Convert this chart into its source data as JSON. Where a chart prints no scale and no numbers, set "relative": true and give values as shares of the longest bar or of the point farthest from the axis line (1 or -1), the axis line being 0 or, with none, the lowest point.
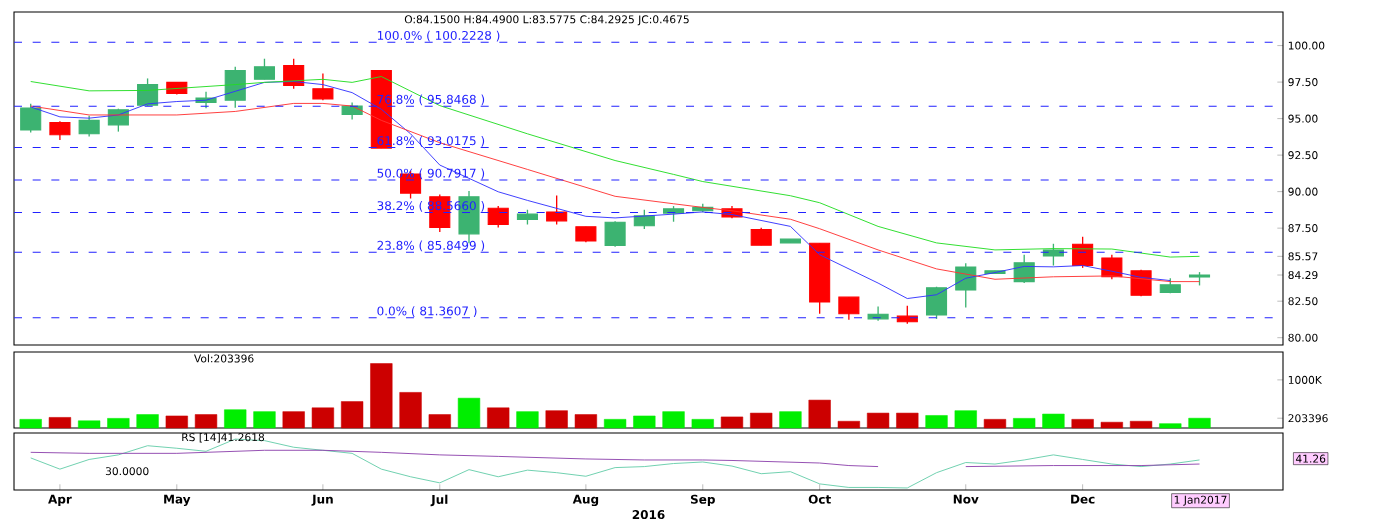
{
  "chart_data": [
    {
      "type": "candlestick",
      "x": [
        "2016-03-28",
        "2016-04-04",
        "2016-04-11",
        "2016-04-18",
        "2016-04-25",
        "2016-05-02",
        "2016-05-09",
        "2016-05-16",
        "2016-05-23",
        "2016-05-30",
        "2016-06-06",
        "2016-06-13",
        "2016-06-20",
        "2016-06-27",
        "2016-07-04",
        "2016-07-11",
        "2016-07-18",
        "2016-07-25",
        "2016-08-01",
        "2016-08-08",
        "2016-08-15",
        "2016-08-22",
        "2016-08-29",
        "2016-09-05",
        "2016-09-12",
        "2016-09-19",
        "2016-09-26",
        "2016-10-03",
        "2016-10-10",
        "2016-10-17",
        "2016-10-24",
        "2016-10-31",
        "2016-11-07",
        "2016-11-14",
        "2016-11-21",
        "2016-11-28",
        "2016-12-05",
        "2016-12-12",
        "2016-12-19",
        "2016-12-26",
        "2017-01-02"
      ],
      "ohlc": [
        [
          94.22,
          96.01,
          94.05,
          95.72
        ],
        [
          94.73,
          94.82,
          93.54,
          93.9
        ],
        [
          93.96,
          95.19,
          93.78,
          94.88
        ],
        [
          94.57,
          95.68,
          94.11,
          95.61
        ],
        [
          95.92,
          97.75,
          95.86,
          97.33
        ],
        [
          97.48,
          97.48,
          96.65,
          96.72
        ],
        [
          96.1,
          96.84,
          95.71,
          96.41
        ],
        [
          96.26,
          98.55,
          95.74,
          98.3
        ],
        [
          97.69,
          99.1,
          97.69,
          98.55
        ],
        [
          98.64,
          99.1,
          97.05,
          97.27
        ],
        [
          97.05,
          98.09,
          96.26,
          96.35
        ],
        [
          95.28,
          96.1,
          94.94,
          95.86
        ],
        [
          98.3,
          98.3,
          92.98,
          92.98
        ],
        [
          91.21,
          91.43,
          89.53,
          89.9
        ],
        [
          89.65,
          89.8,
          87.24,
          87.54
        ],
        [
          87.11,
          90.05,
          86.47,
          89.65
        ],
        [
          88.86,
          89.01,
          87.54,
          87.75
        ],
        [
          88.09,
          88.76,
          87.75,
          88.46
        ],
        [
          88.61,
          89.74,
          87.75,
          88.0
        ],
        [
          87.6,
          87.6,
          86.53,
          86.62
        ],
        [
          86.32,
          87.97,
          86.23,
          87.91
        ],
        [
          87.66,
          88.76,
          87.45,
          88.34
        ],
        [
          88.53,
          89.01,
          87.94,
          88.82
        ],
        [
          88.69,
          89.17,
          88.59,
          88.92
        ],
        [
          88.82,
          89.01,
          88.17,
          88.27
        ],
        [
          87.4,
          87.53,
          86.33,
          86.33
        ],
        [
          86.49,
          86.75,
          86.49,
          86.75
        ],
        [
          86.46,
          86.46,
          81.64,
          82.45
        ],
        [
          82.78,
          82.78,
          81.22,
          81.64
        ],
        [
          81.29,
          82.13,
          81.16,
          81.61
        ],
        [
          81.48,
          82.19,
          80.96,
          81.09
        ],
        [
          81.55,
          83.49,
          81.29,
          83.42
        ],
        [
          83.26,
          85.1,
          82.06,
          84.84
        ],
        [
          84.39,
          84.58,
          84.39,
          84.58
        ],
        [
          83.84,
          85.68,
          83.74,
          85.13
        ],
        [
          85.59,
          86.43,
          84.94,
          86.01
        ],
        [
          86.4,
          86.91,
          84.78,
          84.94
        ],
        [
          85.46,
          85.68,
          84.0,
          84.17
        ],
        [
          84.58,
          84.65,
          82.84,
          82.9
        ],
        [
          83.1,
          84.07,
          83.04,
          83.62
        ],
        [
          84.15,
          84.49,
          83.5775,
          84.2925
        ]
      ],
      "colors": [
        "#3cb371",
        "#ff0000",
        "#3cb371",
        "#3cb371",
        "#3cb371",
        "#ff0000",
        "#3cb371",
        "#3cb371",
        "#3cb371",
        "#ff0000",
        "#ff0000",
        "#3cb371",
        "#ff0000",
        "#ff0000",
        "#ff0000",
        "#3cb371",
        "#ff0000",
        "#3cb371",
        "#ff0000",
        "#ff0000",
        "#3cb371",
        "#3cb371",
        "#3cb371",
        "#3cb371",
        "#ff0000",
        "#ff0000",
        "#3cb371",
        "#ff0000",
        "#ff0000",
        "#3cb371",
        "#ff0000",
        "#3cb371",
        "#3cb371",
        "#3cb371",
        "#3cb371",
        "#3cb371",
        "#ff0000",
        "#ff0000",
        "#ff0000",
        "#3cb371",
        "#3cb371"
      ],
      "series": [
        {
          "type": "line",
          "color": "#3333ff",
          "x": [
            "2016-03-28",
            "2016-04-04",
            "2016-04-11",
            "2016-04-18",
            "2016-04-25",
            "2016-05-02",
            "2016-05-09",
            "2016-05-16",
            "2016-05-23",
            "2016-05-30",
            "2016-06-06",
            "2016-06-13",
            "2016-06-20",
            "2016-06-27",
            "2016-07-04",
            "2016-07-11",
            "2016-07-18",
            "2016-07-25",
            "2016-08-08",
            "2016-08-15",
            "2016-08-29",
            "2016-09-05",
            "2016-09-12",
            "2016-09-26",
            "2016-10-03",
            "2016-10-17",
            "2016-10-24",
            "2016-10-31",
            "2016-11-07",
            "2016-11-14",
            "2016-11-21",
            "2016-11-28",
            "2016-12-05",
            "2016-12-12",
            "2016-12-19",
            "2016-12-26"
          ],
          "values": [
            95.8,
            95.12,
            95.03,
            95.25,
            96.01,
            96.17,
            96.26,
            96.87,
            97.48,
            97.54,
            97.33,
            96.78,
            95.64,
            93.96,
            91.82,
            90.91,
            89.99,
            89.4,
            88.31,
            88.2,
            88.46,
            88.61,
            88.43,
            87.62,
            85.68,
            83.74,
            82.68,
            82.94,
            84.07,
            84.46,
            84.88,
            84.85,
            84.94,
            84.55,
            84.13,
            83.91
          ]
        },
        {
          "type": "line",
          "color": "#ff3333",
          "x": [
            "2016-03-28",
            "2016-04-11",
            "2016-05-02",
            "2016-05-16",
            "2016-05-30",
            "2016-06-06",
            "2016-06-13",
            "2016-06-20",
            "2016-07-04",
            "2016-07-25",
            "2016-08-15",
            "2016-08-29",
            "2016-09-05",
            "2016-09-12",
            "2016-09-26",
            "2016-10-03",
            "2016-10-17",
            "2016-10-31",
            "2016-11-14",
            "2016-11-28",
            "2016-12-12",
            "2016-12-26",
            "2017-01-02"
          ],
          "values": [
            95.86,
            95.25,
            95.25,
            95.49,
            96.04,
            96.04,
            95.86,
            94.88,
            93.35,
            91.52,
            89.68,
            89.17,
            88.92,
            88.69,
            88.11,
            87.46,
            86.01,
            84.71,
            84.0,
            84.17,
            84.23,
            83.84,
            83.84
          ]
        },
        {
          "type": "line",
          "color": "#22dd22",
          "x": [
            "2016-03-28",
            "2016-04-11",
            "2016-04-25",
            "2016-05-16",
            "2016-05-23",
            "2016-06-06",
            "2016-06-13",
            "2016-06-20",
            "2016-07-04",
            "2016-07-25",
            "2016-08-15",
            "2016-08-29",
            "2016-09-05",
            "2016-09-26",
            "2016-10-03",
            "2016-10-17",
            "2016-10-31",
            "2016-11-14",
            "2016-11-28",
            "2016-12-12",
            "2016-12-26",
            "2017-01-02"
          ],
          "values": [
            97.54,
            96.9,
            96.93,
            97.33,
            97.48,
            97.69,
            97.48,
            97.88,
            95.89,
            93.96,
            92.13,
            91.18,
            90.69,
            89.72,
            89.24,
            87.62,
            86.49,
            86.01,
            86.1,
            86.07,
            85.52,
            85.57
          ]
        }
      ],
      "xlim": [
        "2016-03-24",
        "2017-01-22"
      ],
      "ylim": [
        79.5,
        102.3
      ],
      "yticks": [
        {
          "value": 80,
          "label": "80.00"
        },
        {
          "value": 82.5,
          "label": "82.50"
        },
        {
          "value": 84.29,
          "label": "84.29"
        },
        {
          "value": 85.57,
          "label": "85.57"
        },
        {
          "value": 87.5,
          "label": "87.50"
        },
        {
          "value": 90,
          "label": "90.00"
        },
        {
          "value": 92.5,
          "label": "92.50"
        },
        {
          "value": 95,
          "label": "95.00"
        },
        {
          "value": 97.5,
          "label": "97.50"
        },
        {
          "value": 100,
          "label": "100.00"
        }
      ],
      "tick_labels": "y",
      "ref_lines": [
        {
          "axis": "y",
          "value": 100.2228,
          "label": "100.0% ( 100.2228 )",
          "color": "#2222ff",
          "line_style": "dashed"
        },
        {
          "axis": "y",
          "value": 95.8468,
          "label": "76.8% ( 95.8468 )",
          "color": "#2222ff",
          "line_style": "dashed"
        },
        {
          "axis": "y",
          "value": 93.0175,
          "label": "61.8% ( 93.0175 )",
          "color": "#2222ff",
          "line_style": "dashed"
        },
        {
          "axis": "y",
          "value": 90.7917,
          "label": "50.0% ( 90.7917 )",
          "color": "#2222ff",
          "line_style": "dashed"
        },
        {
          "axis": "y",
          "value": 88.566,
          "label": "38.2% ( 88.5660 )",
          "color": "#2222ff",
          "line_style": "dashed"
        },
        {
          "axis": "y",
          "value": 85.8499,
          "label": "23.8% ( 85.8499 )",
          "color": "#2222ff",
          "line_style": "dashed"
        },
        {
          "axis": "y",
          "value": 81.3607,
          "label": "0.0% ( 81.3607 )",
          "color": "#2222ff",
          "line_style": "dashed"
        }
      ],
      "annotations": [
        "O:84.1500  H:84.4900  L:83.5775  C:84.2925  JC:0.4675"
      ]
    },
    {
      "type": "bar",
      "x": [
        "2016-03-28",
        "2016-04-04",
        "2016-04-11",
        "2016-04-18",
        "2016-04-25",
        "2016-05-02",
        "2016-05-09",
        "2016-05-16",
        "2016-05-23",
        "2016-05-30",
        "2016-06-06",
        "2016-06-13",
        "2016-06-20",
        "2016-06-27",
        "2016-07-04",
        "2016-07-11",
        "2016-07-18",
        "2016-07-25",
        "2016-08-01",
        "2016-08-08",
        "2016-08-15",
        "2016-08-22",
        "2016-08-29",
        "2016-09-05",
        "2016-09-12",
        "2016-09-19",
        "2016-09-26",
        "2016-10-03",
        "2016-10-10",
        "2016-10-17",
        "2016-10-24",
        "2016-10-31",
        "2016-11-07",
        "2016-11-14",
        "2016-11-21",
        "2016-11-28",
        "2016-12-05",
        "2016-12-12",
        "2016-12-19",
        "2016-12-26",
        "2017-01-02"
      ],
      "values": [
        180000,
        220000,
        150000,
        200000,
        280000,
        250000,
        280000,
        380000,
        340000,
        340000,
        420000,
        550000,
        1340000,
        740000,
        280000,
        620000,
        420000,
        340000,
        360000,
        280000,
        180000,
        250000,
        340000,
        180000,
        230000,
        310000,
        340000,
        580000,
        140000,
        310000,
        310000,
        260000,
        360000,
        180000,
        200000,
        290000,
        180000,
        120000,
        140000,
        90000,
        203396
      ],
      "colors": [
        "#00ee00",
        "#cc0000",
        "#00ee00",
        "#00ee00",
        "#00ee00",
        "#cc0000",
        "#cc0000",
        "#00ee00",
        "#00ee00",
        "#cc0000",
        "#cc0000",
        "#cc0000",
        "#cc0000",
        "#cc0000",
        "#cc0000",
        "#00ee00",
        "#cc0000",
        "#00ee00",
        "#cc0000",
        "#cc0000",
        "#00ee00",
        "#00ee00",
        "#00ee00",
        "#00ee00",
        "#cc0000",
        "#cc0000",
        "#00ee00",
        "#cc0000",
        "#cc0000",
        "#cc0000",
        "#cc0000",
        "#00ee00",
        "#00ee00",
        "#cc0000",
        "#00ee00",
        "#00ee00",
        "#cc0000",
        "#cc0000",
        "#cc0000",
        "#00ee00",
        "#00ee00"
      ],
      "xlim": [
        "2016-03-24",
        "2017-01-22"
      ],
      "ylim": [
        0,
        1580000
      ],
      "yticks": [
        203396,
        {
          "value": 1000000,
          "label": "1000K"
        }
      ],
      "tick_labels": "y",
      "annotations": [
        "Vol:203396"
      ]
    },
    {
      "type": "line",
      "relative": true,
      "x": [
        "2016-03-28",
        "2016-04-04",
        "2016-04-11",
        "2016-04-18",
        "2016-04-25",
        "2016-05-02",
        "2016-05-09",
        "2016-05-16",
        "2016-05-23",
        "2016-05-30",
        "2016-06-06",
        "2016-06-13",
        "2016-06-20",
        "2016-06-27",
        "2016-07-04",
        "2016-07-11",
        "2016-07-18",
        "2016-07-25",
        "2016-08-01",
        "2016-08-08",
        "2016-08-15",
        "2016-08-22",
        "2016-08-29",
        "2016-09-05",
        "2016-09-12",
        "2016-09-19",
        "2016-09-26",
        "2016-10-03",
        "2016-10-10",
        "2016-10-17",
        "2016-10-24",
        "2016-10-31",
        "2016-11-07",
        "2016-11-14",
        "2016-11-21",
        "2016-11-28",
        "2016-12-05",
        "2016-12-12",
        "2016-12-19",
        "2016-12-26",
        "2017-01-02"
      ],
      "series": [
        {
          "color": "#66cdaa",
          "values": [
            0.63,
            0.41,
            0.6,
            0.69,
            0.87,
            0.82,
            0.76,
            1.0,
            0.97,
            0.84,
            0.78,
            0.72,
            0.41,
            0.26,
            0.14,
            0.4,
            0.26,
            0.39,
            0.34,
            0.27,
            0.44,
            0.46,
            0.52,
            0.55,
            0.47,
            0.32,
            0.36,
            0.12,
            0.05,
            0.05,
            0.04,
            0.34,
            0.54,
            0.51,
            0.59,
            0.69,
            0.6,
            0.51,
            0.46,
            0.51,
            0.59
          ]
        },
        {
          "color": "#8e44ad",
          "x": [
            "2016-03-28",
            "2016-04-11",
            "2016-05-02",
            "2016-05-23",
            "2016-06-06",
            "2016-06-20",
            "2016-07-04",
            "2016-07-18",
            "2016-08-08",
            "2016-08-22",
            "2016-09-05",
            "2016-09-12",
            "2016-10-03",
            "2016-10-10",
            "2016-10-17",
            "2016-10-24",
            "2016-11-07",
            "2016-11-28",
            "2016-12-19",
            "2017-01-02"
          ],
          "values": [
            0.74,
            0.72,
            0.72,
            0.78,
            0.78,
            0.74,
            0.69,
            0.66,
            0.61,
            0.59,
            0.59,
            0.58,
            0.53,
            0.48,
            0.46,
            null,
            0.46,
            0.48,
            0.48,
            0.51
          ]
        }
      ],
      "xlim": [
        "2016-03-24",
        "2017-01-22"
      ],
      "xticks": [
        {
          "value": "2016-04-04",
          "label": "Apr"
        },
        {
          "value": "2016-05-02",
          "label": "May"
        },
        {
          "value": "2016-06-06",
          "label": "Jun"
        },
        {
          "value": "2016-07-04",
          "label": "Jul"
        },
        {
          "value": "2016-08-08",
          "label": "Aug"
        },
        {
          "value": "2016-09-05",
          "label": "Sep"
        },
        {
          "value": "2016-10-03",
          "label": "Oct"
        },
        {
          "value": "2016-11-07",
          "label": "Nov"
        },
        {
          "value": "2016-12-05",
          "label": "Dec"
        }
      ],
      "xlabel": "2016",
      "tick_labels": "x",
      "annotations": [
        "RS [14]41.2618",
        "30.0000",
        "41.26",
        "1 Jan2017"
      ]
    }
  ]
}
